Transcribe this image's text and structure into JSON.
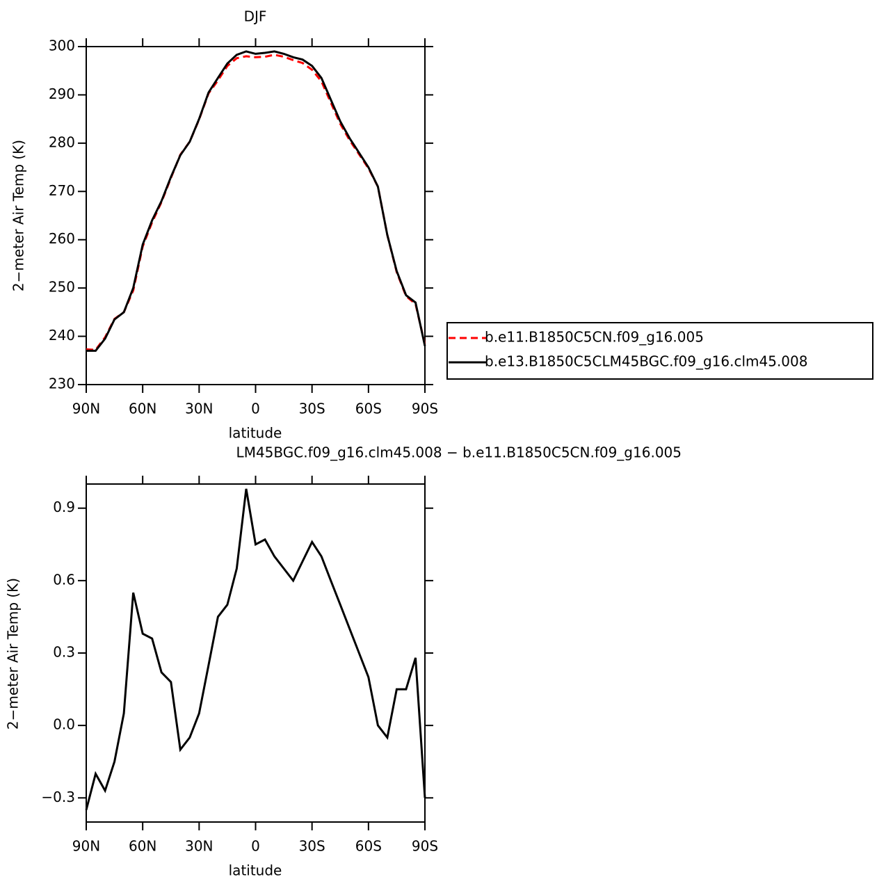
{
  "chart_data": [
    {
      "type": "line",
      "title": "DJF",
      "x_label": "latitude",
      "y_label": "2−meter Air Temp (K)",
      "x": [
        90,
        85,
        80,
        75,
        70,
        65,
        60,
        55,
        50,
        45,
        40,
        35,
        30,
        25,
        20,
        15,
        10,
        5,
        0,
        -5,
        -10,
        -15,
        -20,
        -25,
        -30,
        -35,
        -40,
        -45,
        -50,
        -55,
        -60,
        -65,
        -70,
        -75,
        -80,
        -85,
        -90
      ],
      "series": [
        {
          "name": "b.e11.B1850C5CN.f09_g16.005",
          "color": "#ff0000",
          "dashed": true,
          "values": [
            237.3,
            237.2,
            239.8,
            243.6,
            245,
            249.5,
            258.6,
            263.6,
            267.8,
            272.8,
            277.6,
            280.3,
            284.9,
            290.3,
            293.0,
            296.0,
            297.6,
            298.0,
            297.8,
            297.9,
            298.3,
            297.9,
            297.2,
            296.6,
            295.2,
            292.8,
            288.4,
            284.0,
            280.6,
            277.7,
            274.8,
            271.0,
            261.0,
            253.3,
            248.3,
            246.7,
            238.3
          ]
        },
        {
          "name": "b.e13.B1850C5CLM45BGC.f09_g16.clm45.008",
          "color": "#000000",
          "dashed": false,
          "values": [
            237,
            237.0,
            239.5,
            243.5,
            245,
            250,
            259,
            264,
            268,
            273,
            277.5,
            280.3,
            285,
            290.5,
            293.5,
            296.5,
            298.3,
            299,
            298.5,
            298.7,
            299,
            298.5,
            297.8,
            297.3,
            296,
            293.5,
            289,
            284.5,
            281,
            278,
            275,
            271,
            261,
            253.5,
            248.5,
            247,
            238
          ]
        }
      ],
      "xlim": [
        90,
        -90
      ],
      "xticks": [
        {
          "value": 90,
          "label": "90N"
        },
        {
          "value": 60,
          "label": "60N"
        },
        {
          "value": 30,
          "label": "30N"
        },
        0,
        {
          "value": -30,
          "label": "30S"
        },
        {
          "value": -60,
          "label": "60S"
        },
        {
          "value": -90,
          "label": "90S"
        }
      ],
      "ylim": [
        230,
        300
      ],
      "yticks": [
        230,
        240,
        250,
        260,
        270,
        280,
        290,
        300
      ],
      "legend": "outside-right"
    },
    {
      "type": "line",
      "title": "LM45BGC.f09_g16.clm45.008 − b.e11.B1850C5CN.f09_g16.005",
      "x_label": "latitude",
      "y_label": "2−meter Air Temp (K)",
      "x": [
        90,
        85,
        80,
        75,
        70,
        65,
        60,
        55,
        50,
        45,
        40,
        35,
        30,
        25,
        20,
        15,
        10,
        5,
        0,
        -5,
        -10,
        -15,
        -20,
        -25,
        -30,
        -35,
        -40,
        -45,
        -50,
        -55,
        -60,
        -65,
        -70,
        -75,
        -80,
        -85,
        -90
      ],
      "values": [
        -0.35,
        -0.2,
        -0.27,
        -0.15,
        0.05,
        0.55,
        0.38,
        0.36,
        0.22,
        0.18,
        -0.1,
        -0.05,
        0.05,
        0.25,
        0.45,
        0.5,
        0.65,
        0.98,
        0.75,
        0.77,
        0.7,
        0.65,
        0.6,
        0.68,
        0.76,
        0.7,
        0.6,
        0.5,
        0.4,
        0.3,
        0.2,
        0.0,
        -0.05,
        0.15,
        0.15,
        0.28,
        -0.3
      ],
      "color": "#000000",
      "xlim": [
        90,
        -90
      ],
      "xticks": [
        {
          "value": 90,
          "label": "90N"
        },
        {
          "value": 60,
          "label": "60N"
        },
        {
          "value": 30,
          "label": "30N"
        },
        0,
        {
          "value": -30,
          "label": "30S"
        },
        {
          "value": -60,
          "label": "60S"
        },
        {
          "value": -90,
          "label": "90S"
        }
      ],
      "ylim": [
        -0.4,
        1.0
      ],
      "yticks": [
        {
          "value": -0.3,
          "label": "−0.3"
        },
        {
          "value": 0,
          "label": "0.0"
        },
        0.3,
        0.6,
        0.9
      ]
    }
  ]
}
